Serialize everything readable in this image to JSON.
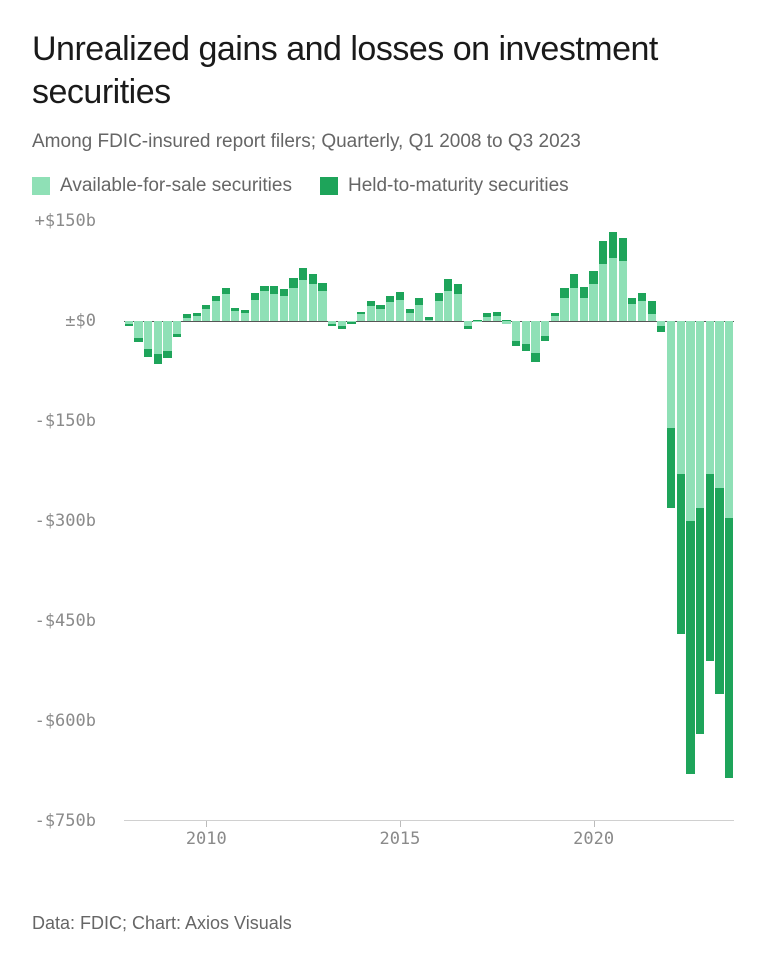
{
  "title": "Unrealized gains and losses on investment securities",
  "subtitle": "Among FDIC-insured report filers; Quarterly, Q1 2008 to Q3 2023",
  "source": "Data: FDIC; Chart: Axios Visuals",
  "legend": [
    {
      "label": "Available-for-sale securities",
      "color": "#8fe0b6"
    },
    {
      "label": "Held-to-maturity securities",
      "color": "#1ea45a"
    }
  ],
  "chart": {
    "type": "stacked-bar",
    "background_color": "#ffffff",
    "axis_label_color": "#8a8a8a",
    "axis_font": "monospace",
    "ymin": -750,
    "ymax": 150,
    "ytick_step": 150,
    "ytick_labels": [
      "+$150b",
      "±$0",
      "-$150b",
      "-$300b",
      "-$450b",
      "-$600b",
      "-$750b"
    ],
    "ytick_values": [
      150,
      0,
      -150,
      -300,
      -450,
      -600,
      -750
    ],
    "zero_line_color": "#555555",
    "xaxis_line_color": "#d0d0d0",
    "series_colors": {
      "afs": "#8fe0b6",
      "htm": "#1ea45a"
    },
    "bar_gap_ratio": 0.15,
    "x_start_year": 2008,
    "xtick_years": [
      2010,
      2015,
      2020
    ],
    "points": [
      {
        "q": "2008Q1",
        "afs": -5,
        "htm": -2
      },
      {
        "q": "2008Q2",
        "afs": -25,
        "htm": -6
      },
      {
        "q": "2008Q3",
        "afs": -42,
        "htm": -12
      },
      {
        "q": "2008Q4",
        "afs": -50,
        "htm": -14
      },
      {
        "q": "2009Q1",
        "afs": -45,
        "htm": -10
      },
      {
        "q": "2009Q2",
        "afs": -20,
        "htm": -4
      },
      {
        "q": "2009Q3",
        "afs": 5,
        "htm": 6
      },
      {
        "q": "2009Q4",
        "afs": 8,
        "htm": 4
      },
      {
        "q": "2010Q1",
        "afs": 18,
        "htm": 6
      },
      {
        "q": "2010Q2",
        "afs": 30,
        "htm": 8
      },
      {
        "q": "2010Q3",
        "afs": 40,
        "htm": 10
      },
      {
        "q": "2010Q4",
        "afs": 15,
        "htm": 5
      },
      {
        "q": "2011Q1",
        "afs": 12,
        "htm": 4
      },
      {
        "q": "2011Q2",
        "afs": 32,
        "htm": 10
      },
      {
        "q": "2011Q3",
        "afs": 45,
        "htm": 8
      },
      {
        "q": "2011Q4",
        "afs": 40,
        "htm": 12
      },
      {
        "q": "2012Q1",
        "afs": 38,
        "htm": 10
      },
      {
        "q": "2012Q2",
        "afs": 50,
        "htm": 14
      },
      {
        "q": "2012Q3",
        "afs": 62,
        "htm": 18
      },
      {
        "q": "2012Q4",
        "afs": 55,
        "htm": 16
      },
      {
        "q": "2013Q1",
        "afs": 45,
        "htm": 12
      },
      {
        "q": "2013Q2",
        "afs": -5,
        "htm": -2
      },
      {
        "q": "2013Q3",
        "afs": -8,
        "htm": -4
      },
      {
        "q": "2013Q4",
        "afs": -2,
        "htm": -2
      },
      {
        "q": "2014Q1",
        "afs": 10,
        "htm": 4
      },
      {
        "q": "2014Q2",
        "afs": 22,
        "htm": 8
      },
      {
        "q": "2014Q3",
        "afs": 18,
        "htm": 6
      },
      {
        "q": "2014Q4",
        "afs": 28,
        "htm": 10
      },
      {
        "q": "2015Q1",
        "afs": 32,
        "htm": 12
      },
      {
        "q": "2015Q2",
        "afs": 12,
        "htm": 6
      },
      {
        "q": "2015Q3",
        "afs": 24,
        "htm": 10
      },
      {
        "q": "2015Q4",
        "afs": 2,
        "htm": 4
      },
      {
        "q": "2016Q1",
        "afs": 30,
        "htm": 12
      },
      {
        "q": "2016Q2",
        "afs": 45,
        "htm": 18
      },
      {
        "q": "2016Q3",
        "afs": 40,
        "htm": 16
      },
      {
        "q": "2016Q4",
        "afs": -8,
        "htm": -4
      },
      {
        "q": "2017Q1",
        "afs": -2,
        "htm": 2
      },
      {
        "q": "2017Q2",
        "afs": 6,
        "htm": 6
      },
      {
        "q": "2017Q3",
        "afs": 8,
        "htm": 6
      },
      {
        "q": "2017Q4",
        "afs": -4,
        "htm": 2
      },
      {
        "q": "2018Q1",
        "afs": -30,
        "htm": -8
      },
      {
        "q": "2018Q2",
        "afs": -35,
        "htm": -10
      },
      {
        "q": "2018Q3",
        "afs": -48,
        "htm": -14
      },
      {
        "q": "2018Q4",
        "afs": -22,
        "htm": -8
      },
      {
        "q": "2019Q1",
        "afs": 8,
        "htm": 4
      },
      {
        "q": "2019Q2",
        "afs": 35,
        "htm": 14
      },
      {
        "q": "2019Q3",
        "afs": 50,
        "htm": 20
      },
      {
        "q": "2019Q4",
        "afs": 35,
        "htm": 16
      },
      {
        "q": "2020Q1",
        "afs": 55,
        "htm": 20
      },
      {
        "q": "2020Q2",
        "afs": 85,
        "htm": 35
      },
      {
        "q": "2020Q3",
        "afs": 95,
        "htm": 38
      },
      {
        "q": "2020Q4",
        "afs": 90,
        "htm": 35
      },
      {
        "q": "2021Q1",
        "afs": 25,
        "htm": 10
      },
      {
        "q": "2021Q2",
        "afs": 30,
        "htm": 12
      },
      {
        "q": "2021Q3",
        "afs": 10,
        "htm": 20
      },
      {
        "q": "2021Q4",
        "afs": -8,
        "htm": -8
      },
      {
        "q": "2022Q1",
        "afs": -160,
        "htm": -120
      },
      {
        "q": "2022Q2",
        "afs": -230,
        "htm": -240
      },
      {
        "q": "2022Q3",
        "afs": -300,
        "htm": -380
      },
      {
        "q": "2022Q4",
        "afs": -280,
        "htm": -340
      },
      {
        "q": "2023Q1",
        "afs": -230,
        "htm": -280
      },
      {
        "q": "2023Q2",
        "afs": -250,
        "htm": -310
      },
      {
        "q": "2023Q3",
        "afs": -295,
        "htm": -390
      }
    ]
  }
}
